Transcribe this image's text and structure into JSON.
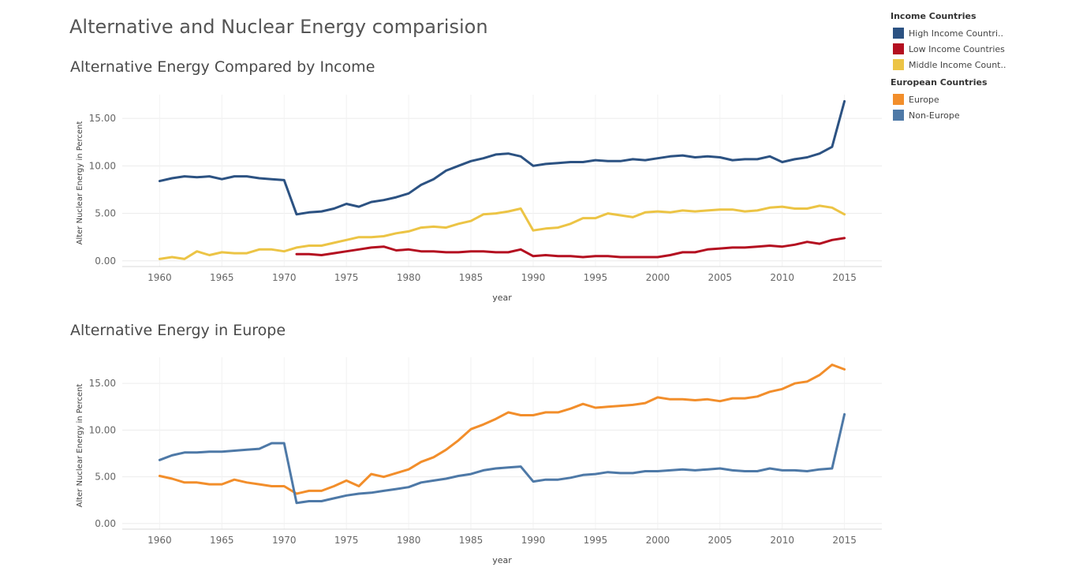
{
  "page": {
    "title": "Alternative and Nuclear Energy comparision"
  },
  "legend": {
    "groups": [
      {
        "title": "Income Countries",
        "items": [
          {
            "label": "High Income Countri..",
            "color": "#2c5282"
          },
          {
            "label": "Low Income Countries",
            "color": "#b40f20"
          },
          {
            "label": "Middle Income Count..",
            "color": "#ecc445"
          }
        ]
      },
      {
        "title": "European Countries",
        "items": [
          {
            "label": "Europe",
            "color": "#f28e2b"
          },
          {
            "label": "Non-Europe",
            "color": "#4e79a7"
          }
        ]
      }
    ]
  },
  "chart_data": [
    {
      "type": "line",
      "title": "Alternative Energy Compared by Income",
      "xlabel": "year",
      "ylabel": "Alter Nuclear Energy in Percent",
      "xlim": [
        1957,
        2018
      ],
      "ylim": [
        -0.6,
        17.5
      ],
      "xticks": [
        1960,
        1965,
        1970,
        1975,
        1980,
        1985,
        1990,
        1995,
        2000,
        2005,
        2010,
        2015
      ],
      "yticks": [
        0,
        5,
        10,
        15
      ],
      "ytick_labels": [
        "0.00",
        "5.00",
        "10.00",
        "15.00"
      ],
      "grid": true,
      "series": [
        {
          "name": "High Income Countries",
          "color": "#2c5282",
          "x0": 1960,
          "values": [
            8.4,
            8.7,
            8.9,
            8.8,
            8.9,
            8.6,
            8.9,
            8.9,
            8.7,
            8.6,
            8.5,
            4.9,
            5.1,
            5.2,
            5.5,
            6.0,
            5.7,
            6.2,
            6.4,
            6.7,
            7.1,
            8.0,
            8.6,
            9.5,
            10.0,
            10.5,
            10.8,
            11.2,
            11.3,
            11.0,
            10.0,
            10.2,
            10.3,
            10.4,
            10.4,
            10.6,
            10.5,
            10.5,
            10.7,
            10.6,
            10.8,
            11.0,
            11.1,
            10.9,
            11.0,
            10.9,
            10.6,
            10.7,
            10.7,
            11.0,
            10.4,
            10.7,
            10.9,
            11.3,
            12.0,
            16.8
          ]
        },
        {
          "name": "Low Income Countries",
          "color": "#b40f20",
          "x0": 1971,
          "values": [
            0.7,
            0.7,
            0.6,
            0.8,
            1.0,
            1.2,
            1.4,
            1.5,
            1.1,
            1.2,
            1.0,
            1.0,
            0.9,
            0.9,
            1.0,
            1.0,
            0.9,
            0.9,
            1.2,
            0.5,
            0.6,
            0.5,
            0.5,
            0.4,
            0.5,
            0.5,
            0.4,
            0.4,
            0.4,
            0.4,
            0.6,
            0.9,
            0.9,
            1.2,
            1.3,
            1.4,
            1.4,
            1.5,
            1.6,
            1.5,
            1.7,
            2.0,
            1.8,
            2.2,
            2.4
          ]
        },
        {
          "name": "Middle Income Countries",
          "color": "#ecc445",
          "x0": 1960,
          "values": [
            0.2,
            0.4,
            0.2,
            1.0,
            0.6,
            0.9,
            0.8,
            0.8,
            1.2,
            1.2,
            1.0,
            1.4,
            1.6,
            1.6,
            1.9,
            2.2,
            2.5,
            2.5,
            2.6,
            2.9,
            3.1,
            3.5,
            3.6,
            3.5,
            3.9,
            4.2,
            4.9,
            5.0,
            5.2,
            5.5,
            3.2,
            3.4,
            3.5,
            3.9,
            4.5,
            4.5,
            5.0,
            4.8,
            4.6,
            5.1,
            5.2,
            5.1,
            5.3,
            5.2,
            5.3,
            5.4,
            5.4,
            5.2,
            5.3,
            5.6,
            5.7,
            5.5,
            5.5,
            5.8,
            5.6,
            4.9
          ]
        }
      ]
    },
    {
      "type": "line",
      "title": "Alternative Energy in Europe",
      "xlabel": "year",
      "ylabel": "Alter Nuclear Energy in Percent",
      "xlim": [
        1957,
        2018
      ],
      "ylim": [
        -0.6,
        17.8
      ],
      "xticks": [
        1960,
        1965,
        1970,
        1975,
        1980,
        1985,
        1990,
        1995,
        2000,
        2005,
        2010,
        2015
      ],
      "yticks": [
        0,
        5,
        10,
        15
      ],
      "ytick_labels": [
        "0.00",
        "5.00",
        "10.00",
        "15.00"
      ],
      "grid": true,
      "series": [
        {
          "name": "Europe",
          "color": "#f28e2b",
          "x0": 1960,
          "values": [
            5.1,
            4.8,
            4.4,
            4.4,
            4.2,
            4.2,
            4.7,
            4.4,
            4.2,
            4.0,
            4.0,
            3.2,
            3.5,
            3.5,
            4.0,
            4.6,
            4.0,
            5.3,
            5.0,
            5.4,
            5.8,
            6.6,
            7.1,
            7.9,
            8.9,
            10.1,
            10.6,
            11.2,
            11.9,
            11.6,
            11.6,
            11.9,
            11.9,
            12.3,
            12.8,
            12.4,
            12.5,
            12.6,
            12.7,
            12.9,
            13.5,
            13.3,
            13.3,
            13.2,
            13.3,
            13.1,
            13.4,
            13.4,
            13.6,
            14.1,
            14.4,
            15.0,
            15.2,
            15.9,
            17.0,
            16.5
          ]
        },
        {
          "name": "Non-Europe",
          "color": "#4e79a7",
          "x0": 1960,
          "values": [
            6.8,
            7.3,
            7.6,
            7.6,
            7.7,
            7.7,
            7.8,
            7.9,
            8.0,
            8.6,
            8.6,
            2.2,
            2.4,
            2.4,
            2.7,
            3.0,
            3.2,
            3.3,
            3.5,
            3.7,
            3.9,
            4.4,
            4.6,
            4.8,
            5.1,
            5.3,
            5.7,
            5.9,
            6.0,
            6.1,
            4.5,
            4.7,
            4.7,
            4.9,
            5.2,
            5.3,
            5.5,
            5.4,
            5.4,
            5.6,
            5.6,
            5.7,
            5.8,
            5.7,
            5.8,
            5.9,
            5.7,
            5.6,
            5.6,
            5.9,
            5.7,
            5.7,
            5.6,
            5.8,
            5.9,
            11.7
          ]
        }
      ]
    }
  ]
}
